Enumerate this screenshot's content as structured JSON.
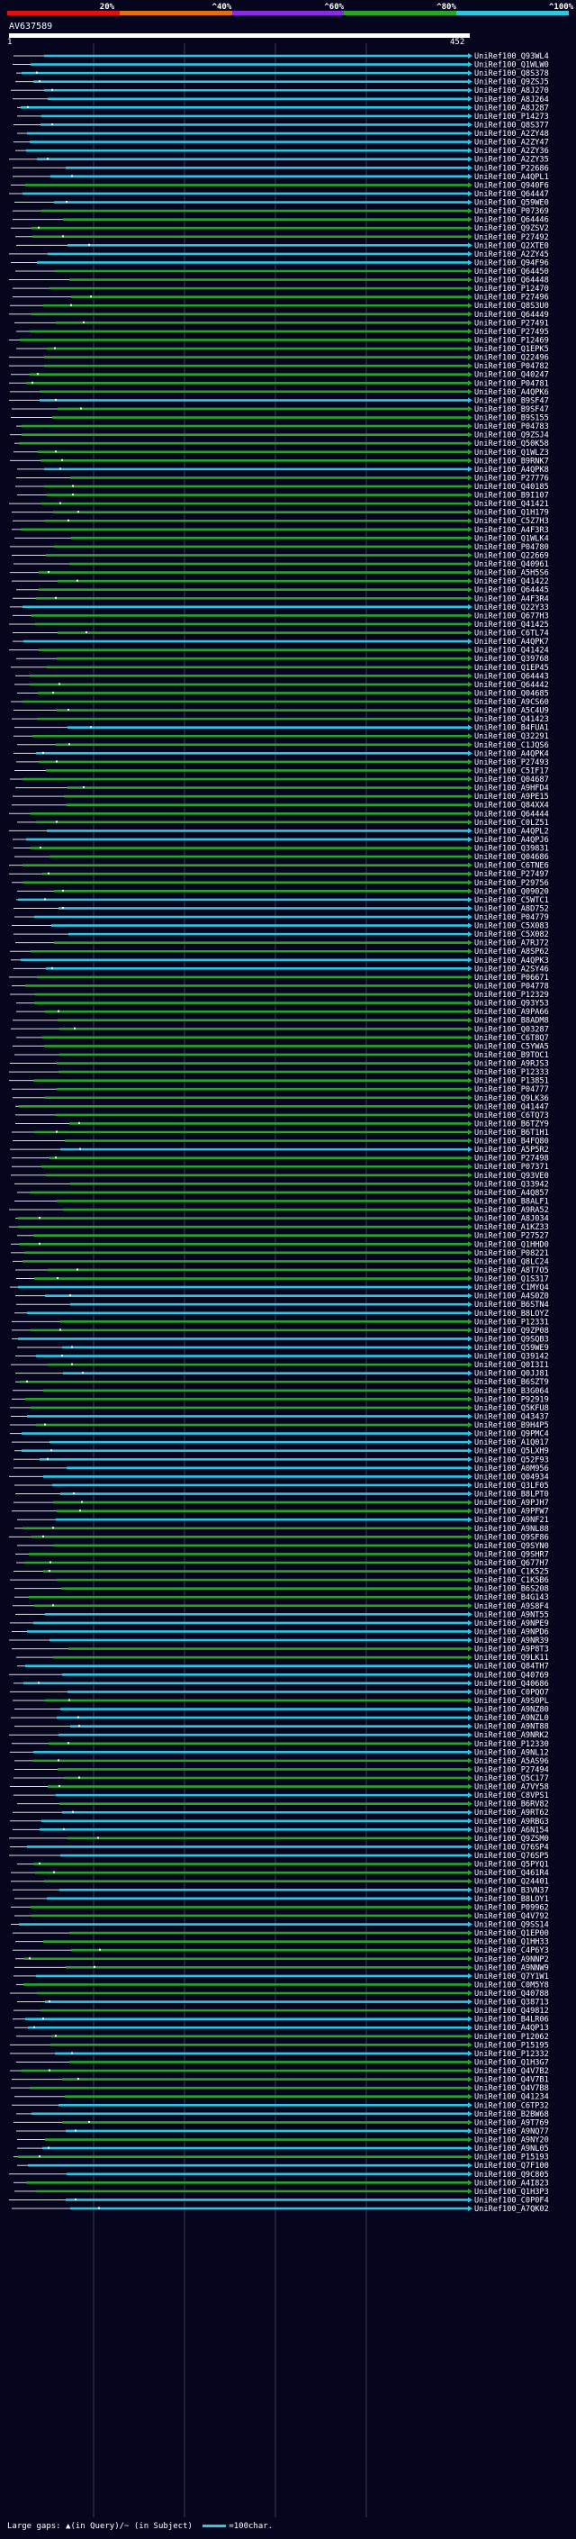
{
  "header": {
    "query_id": "AV637589",
    "range_start": "1",
    "range_end": "452"
  },
  "scale": [
    {
      "label": "20%",
      "color": "#e01010"
    },
    {
      "label": "^40%",
      "color": "#e07010"
    },
    {
      "label": "^60%",
      "color": "#8a2be2"
    },
    {
      "label": "^80%",
      "color": "#2aa52a"
    },
    {
      "label": "^100%",
      "color": "#2ec7e0"
    }
  ],
  "colors": {
    "cyan": "#2ec7e0",
    "green": "#2aa52a",
    "line": "#dcdcdc"
  },
  "hits": [
    {
      "id": "UniRef100_Q93WL4",
      "c": "cyan"
    },
    {
      "id": "UniRef100_Q1WLW0",
      "c": "cyan"
    },
    {
      "id": "UniRef100_Q8S378",
      "c": "cyan"
    },
    {
      "id": "UniRef100_Q9ZSJ5",
      "c": "cyan"
    },
    {
      "id": "UniRef100_A8J270",
      "c": "cyan"
    },
    {
      "id": "UniRef100_A8J264",
      "c": "cyan"
    },
    {
      "id": "UniRef100_A8J287",
      "c": "cyan"
    },
    {
      "id": "UniRef100_P14273",
      "c": "cyan"
    },
    {
      "id": "UniRef100_Q8S377",
      "c": "cyan"
    },
    {
      "id": "UniRef100_A2ZY48",
      "c": "cyan"
    },
    {
      "id": "UniRef100_A2ZY47",
      "c": "cyan"
    },
    {
      "id": "UniRef100_A2ZY36",
      "c": "cyan"
    },
    {
      "id": "UniRef100_A2ZY35",
      "c": "cyan"
    },
    {
      "id": "UniRef100_P22686",
      "c": "cyan"
    },
    {
      "id": "UniRef100_A4QPL1",
      "c": "cyan"
    },
    {
      "id": "UniRef100_Q940F6",
      "c": "green"
    },
    {
      "id": "UniRef100_Q64447",
      "c": "cyan"
    },
    {
      "id": "UniRef100_Q59WE0",
      "c": "cyan"
    },
    {
      "id": "UniRef100_P07369",
      "c": "green"
    },
    {
      "id": "UniRef100_Q64446",
      "c": "green"
    },
    {
      "id": "UniRef100_Q9ZSV2",
      "c": "green"
    },
    {
      "id": "UniRef100_P27492",
      "c": "green"
    },
    {
      "id": "UniRef100_Q2XTE0",
      "c": "cyan"
    },
    {
      "id": "UniRef100_A2ZY45",
      "c": "cyan"
    },
    {
      "id": "UniRef100_Q94F96",
      "c": "cyan"
    },
    {
      "id": "UniRef100_Q64450",
      "c": "green"
    },
    {
      "id": "UniRef100_Q64448",
      "c": "green"
    },
    {
      "id": "UniRef100_P12470",
      "c": "green"
    },
    {
      "id": "UniRef100_P27496",
      "c": "green"
    },
    {
      "id": "UniRef100_Q8S3U0",
      "c": "green"
    },
    {
      "id": "UniRef100_Q64449",
      "c": "green"
    },
    {
      "id": "UniRef100_P27491",
      "c": "green"
    },
    {
      "id": "UniRef100_P27495",
      "c": "green"
    },
    {
      "id": "UniRef100_P12469",
      "c": "green"
    },
    {
      "id": "UniRef100_Q1EPK5",
      "c": "green"
    },
    {
      "id": "UniRef100_Q22496",
      "c": "green"
    },
    {
      "id": "UniRef100_P04782",
      "c": "green"
    },
    {
      "id": "UniRef100_Q40247",
      "c": "green"
    },
    {
      "id": "UniRef100_P04781",
      "c": "green"
    },
    {
      "id": "UniRef100_A4QPK6",
      "c": "green"
    },
    {
      "id": "UniRef100_B9SF47",
      "c": "cyan"
    },
    {
      "id": "UniRef100_B9SF47",
      "c": "green"
    },
    {
      "id": "UniRef100_B9S155",
      "c": "green"
    },
    {
      "id": "UniRef100_P04783",
      "c": "green"
    },
    {
      "id": "UniRef100_Q9ZSJ4",
      "c": "green"
    },
    {
      "id": "UniRef100_Q50K58",
      "c": "green"
    },
    {
      "id": "UniRef100_Q1WLZ3",
      "c": "green"
    },
    {
      "id": "UniRef100_B9RNK7",
      "c": "green"
    },
    {
      "id": "UniRef100_A4QPK8",
      "c": "cyan"
    },
    {
      "id": "UniRef100_P27776",
      "c": "green"
    },
    {
      "id": "UniRef100_Q40185",
      "c": "green"
    },
    {
      "id": "UniRef100_B9I107",
      "c": "green"
    },
    {
      "id": "UniRef100_Q41421",
      "c": "green"
    },
    {
      "id": "UniRef100_Q1H179",
      "c": "green"
    },
    {
      "id": "UniRef100_C5Z7H3",
      "c": "green"
    },
    {
      "id": "UniRef100_A4F3R3",
      "c": "green"
    },
    {
      "id": "UniRef100_Q1WLK4",
      "c": "green"
    },
    {
      "id": "UniRef100_P04780",
      "c": "green"
    },
    {
      "id": "UniRef100_Q22669",
      "c": "green"
    },
    {
      "id": "UniRef100_Q40961",
      "c": "green"
    },
    {
      "id": "UniRef100_A5H5S6",
      "c": "green"
    },
    {
      "id": "UniRef100_Q41422",
      "c": "green"
    },
    {
      "id": "UniRef100_Q64445",
      "c": "green"
    },
    {
      "id": "UniRef100_A4F3R4",
      "c": "green"
    },
    {
      "id": "UniRef100_Q22Y33",
      "c": "cyan"
    },
    {
      "id": "UniRef100_Q677H3",
      "c": "green"
    },
    {
      "id": "UniRef100_Q41425",
      "c": "green"
    },
    {
      "id": "UniRef100_C6TL74",
      "c": "green"
    },
    {
      "id": "UniRef100_A4QPK7",
      "c": "cyan"
    },
    {
      "id": "UniRef100_Q41424",
      "c": "green"
    },
    {
      "id": "UniRef100_Q39768",
      "c": "green"
    },
    {
      "id": "UniRef100_Q1EP45",
      "c": "green"
    },
    {
      "id": "UniRef100_Q64443",
      "c": "green"
    },
    {
      "id": "UniRef100_Q64442",
      "c": "green"
    },
    {
      "id": "UniRef100_Q04685",
      "c": "green"
    },
    {
      "id": "UniRef100_A9CS60",
      "c": "green"
    },
    {
      "id": "UniRef100_A5C4U9",
      "c": "green"
    },
    {
      "id": "UniRef100_Q41423",
      "c": "green"
    },
    {
      "id": "UniRef100_B4FUA1",
      "c": "cyan"
    },
    {
      "id": "UniRef100_Q32291",
      "c": "green"
    },
    {
      "id": "UniRef100_C1JQS6",
      "c": "green"
    },
    {
      "id": "UniRef100_A4QPK4",
      "c": "cyan"
    },
    {
      "id": "UniRef100_P27493",
      "c": "green"
    },
    {
      "id": "UniRef100_C5IF17",
      "c": "green"
    },
    {
      "id": "UniRef100_Q04687",
      "c": "green"
    },
    {
      "id": "UniRef100_A9HFD4",
      "c": "green"
    },
    {
      "id": "UniRef100_A9PE15",
      "c": "green"
    },
    {
      "id": "UniRef100_Q84XX4",
      "c": "green"
    },
    {
      "id": "UniRef100_Q64444",
      "c": "green"
    },
    {
      "id": "UniRef100_C0LZ51",
      "c": "green"
    },
    {
      "id": "UniRef100_A4QPL2",
      "c": "cyan"
    },
    {
      "id": "UniRef100_A4QPJ6",
      "c": "cyan"
    },
    {
      "id": "UniRef100_Q39831",
      "c": "green"
    },
    {
      "id": "UniRef100_Q04686",
      "c": "green"
    },
    {
      "id": "UniRef100_C6TNE6",
      "c": "green"
    },
    {
      "id": "UniRef100_P27497",
      "c": "green"
    },
    {
      "id": "UniRef100_P29756",
      "c": "green"
    },
    {
      "id": "UniRef100_Q09020",
      "c": "green"
    },
    {
      "id": "UniRef100_C5WTC1",
      "c": "cyan"
    },
    {
      "id": "UniRef100_A8D752",
      "c": "cyan"
    },
    {
      "id": "UniRef100_P04779",
      "c": "cyan"
    },
    {
      "id": "UniRef100_C5X083",
      "c": "cyan"
    },
    {
      "id": "UniRef100_C5X082",
      "c": "cyan"
    },
    {
      "id": "UniRef100_A7RJ72",
      "c": "green"
    },
    {
      "id": "UniRef100_A8SP62",
      "c": "green"
    },
    {
      "id": "UniRef100_A4QPK3",
      "c": "cyan"
    },
    {
      "id": "UniRef100_A2SY46",
      "c": "cyan"
    },
    {
      "id": "UniRef100_P06671",
      "c": "green"
    },
    {
      "id": "UniRef100_P04778",
      "c": "green"
    },
    {
      "id": "UniRef100_P12329",
      "c": "green"
    },
    {
      "id": "UniRef100_Q93Y53",
      "c": "green"
    },
    {
      "id": "UniRef100_A9PA66",
      "c": "green"
    },
    {
      "id": "UniRef100_B8ADM8",
      "c": "green"
    },
    {
      "id": "UniRef100_Q03287",
      "c": "green"
    },
    {
      "id": "UniRef100_C6T8Q7",
      "c": "green"
    },
    {
      "id": "UniRef100_C5YWA5",
      "c": "green"
    },
    {
      "id": "UniRef100_B9TOC1",
      "c": "green"
    },
    {
      "id": "UniRef100_A9RJS3",
      "c": "green"
    },
    {
      "id": "UniRef100_P12333",
      "c": "green"
    },
    {
      "id": "UniRef100_P13851",
      "c": "green"
    },
    {
      "id": "UniRef100_P04777",
      "c": "green"
    },
    {
      "id": "UniRef100_Q9LK36",
      "c": "green"
    },
    {
      "id": "UniRef100_Q41447",
      "c": "green"
    },
    {
      "id": "UniRef100_C6TQ73",
      "c": "green"
    },
    {
      "id": "UniRef100_B6TZY9",
      "c": "green"
    },
    {
      "id": "UniRef100_B6T1H1",
      "c": "green"
    },
    {
      "id": "UniRef100_B4FQ80",
      "c": "green"
    },
    {
      "id": "UniRef100_A5P5R2",
      "c": "cyan"
    },
    {
      "id": "UniRef100_P27498",
      "c": "green"
    },
    {
      "id": "UniRef100_P07371",
      "c": "green"
    },
    {
      "id": "UniRef100_Q93VE0",
      "c": "green"
    },
    {
      "id": "UniRef100_Q33942",
      "c": "green"
    },
    {
      "id": "UniRef100_A4Q857",
      "c": "green"
    },
    {
      "id": "UniRef100_B8ALF1",
      "c": "green"
    },
    {
      "id": "UniRef100_A9RA52",
      "c": "green"
    },
    {
      "id": "UniRef100_A8J034",
      "c": "green"
    },
    {
      "id": "UniRef100_A1KZ33",
      "c": "green"
    },
    {
      "id": "UniRef100_P27527",
      "c": "green"
    },
    {
      "id": "UniRef100_Q1HHD0",
      "c": "green"
    },
    {
      "id": "UniRef100_P08221",
      "c": "green"
    },
    {
      "id": "UniRef100_Q8LC24",
      "c": "green"
    },
    {
      "id": "UniRef100_A8T7O5",
      "c": "green"
    },
    {
      "id": "UniRef100_Q1S317",
      "c": "green"
    },
    {
      "id": "UniRef100_C1MYQ4",
      "c": "cyan"
    },
    {
      "id": "UniRef100_A4S0Z0",
      "c": "cyan"
    },
    {
      "id": "UniRef100_B6STN4",
      "c": "cyan"
    },
    {
      "id": "UniRef100_B8LOYZ",
      "c": "cyan"
    },
    {
      "id": "UniRef100_P12331",
      "c": "green"
    },
    {
      "id": "UniRef100_Q9ZP08",
      "c": "green"
    },
    {
      "id": "UniRef100_Q9SQB3",
      "c": "cyan"
    },
    {
      "id": "UniRef100_Q59WE9",
      "c": "cyan"
    },
    {
      "id": "UniRef100_Q39142",
      "c": "cyan"
    },
    {
      "id": "UniRef100_Q0I3I1",
      "c": "green"
    },
    {
      "id": "UniRef100_Q0JJ81",
      "c": "cyan"
    },
    {
      "id": "UniRef100_B6SZT9",
      "c": "green"
    },
    {
      "id": "UniRef100_B3G064",
      "c": "green"
    },
    {
      "id": "UniRef100_P92919",
      "c": "green"
    },
    {
      "id": "UniRef100_Q5KFU8",
      "c": "green"
    },
    {
      "id": "UniRef100_Q43437",
      "c": "cyan"
    },
    {
      "id": "UniRef100_B9H4P5",
      "c": "green"
    },
    {
      "id": "UniRef100_Q9PMC4",
      "c": "cyan"
    },
    {
      "id": "UniRef100_A1Q017",
      "c": "cyan"
    },
    {
      "id": "UniRef100_Q5LXH9",
      "c": "cyan"
    },
    {
      "id": "UniRef100_Q52F93",
      "c": "cyan"
    },
    {
      "id": "UniRef100_A0M956",
      "c": "cyan"
    },
    {
      "id": "UniRef100_Q04934",
      "c": "cyan"
    },
    {
      "id": "UniRef100_Q3LF05",
      "c": "cyan"
    },
    {
      "id": "UniRef100_B8LPT0",
      "c": "cyan"
    },
    {
      "id": "UniRef100_A9PJH7",
      "c": "green"
    },
    {
      "id": "UniRef100_A9PFW7",
      "c": "green"
    },
    {
      "id": "UniRef100_A9NF21",
      "c": "cyan"
    },
    {
      "id": "UniRef100_A9NL88",
      "c": "green"
    },
    {
      "id": "UniRef100_Q9SF86",
      "c": "green"
    },
    {
      "id": "UniRef100_Q9SYN0",
      "c": "green"
    },
    {
      "id": "UniRef100_Q9SHR7",
      "c": "green"
    },
    {
      "id": "UniRef100_Q677H7",
      "c": "green"
    },
    {
      "id": "UniRef100_C1K525",
      "c": "green"
    },
    {
      "id": "UniRef100_C1K5B6",
      "c": "green"
    },
    {
      "id": "UniRef100_B6S208",
      "c": "green"
    },
    {
      "id": "UniRef100_B4G143",
      "c": "green"
    },
    {
      "id": "UniRef100_A9S8F4",
      "c": "green"
    },
    {
      "id": "UniRef100_A9NT55",
      "c": "cyan"
    },
    {
      "id": "UniRef100_A9NPE9",
      "c": "cyan"
    },
    {
      "id": "UniRef100_A9NPD6",
      "c": "cyan"
    },
    {
      "id": "UniRef100_A9NR39",
      "c": "cyan"
    },
    {
      "id": "UniRef100_A9P8T3",
      "c": "green"
    },
    {
      "id": "UniRef100_Q9LK11",
      "c": "green"
    },
    {
      "id": "UniRef100_Q84TH7",
      "c": "cyan"
    },
    {
      "id": "UniRef100_Q40769",
      "c": "cyan"
    },
    {
      "id": "UniRef100_Q40686",
      "c": "cyan"
    },
    {
      "id": "UniRef100_C0PQO7",
      "c": "cyan"
    },
    {
      "id": "UniRef100_A9S0PL",
      "c": "green"
    },
    {
      "id": "UniRef100_A9NZ80",
      "c": "cyan"
    },
    {
      "id": "UniRef100_A9NZL0",
      "c": "cyan"
    },
    {
      "id": "UniRef100_A9NT88",
      "c": "cyan"
    },
    {
      "id": "UniRef100_A9NRK2",
      "c": "cyan"
    },
    {
      "id": "UniRef100_P12330",
      "c": "green"
    },
    {
      "id": "UniRef100_A9NL12",
      "c": "cyan"
    },
    {
      "id": "UniRef100_A5AS96",
      "c": "green"
    },
    {
      "id": "UniRef100_P27494",
      "c": "green"
    },
    {
      "id": "UniRef100_Q5C177",
      "c": "green"
    },
    {
      "id": "UniRef100_A7VY58",
      "c": "green"
    },
    {
      "id": "UniRef100_C8VPS1",
      "c": "cyan"
    },
    {
      "id": "UniRef100_B6RV82",
      "c": "green"
    },
    {
      "id": "UniRef100_A9RT62",
      "c": "cyan"
    },
    {
      "id": "UniRef100_A9RBG3",
      "c": "cyan"
    },
    {
      "id": "UniRef100_A6N154",
      "c": "cyan"
    },
    {
      "id": "UniRef100_Q9ZSM0",
      "c": "green"
    },
    {
      "id": "UniRef100_Q76SP4",
      "c": "cyan"
    },
    {
      "id": "UniRef100_Q76SP5",
      "c": "cyan"
    },
    {
      "id": "UniRef100_Q5PYQ1",
      "c": "green"
    },
    {
      "id": "UniRef100_Q461R4",
      "c": "green"
    },
    {
      "id": "UniRef100_Q24401",
      "c": "green"
    },
    {
      "id": "UniRef100_B3VN37",
      "c": "cyan"
    },
    {
      "id": "UniRef100_B8LOY1",
      "c": "cyan"
    },
    {
      "id": "UniRef100_P09962",
      "c": "green"
    },
    {
      "id": "UniRef100_Q4V792",
      "c": "green"
    },
    {
      "id": "UniRef100_Q9SS14",
      "c": "cyan"
    },
    {
      "id": "UniRef100_Q1EP00",
      "c": "green"
    },
    {
      "id": "UniRef100_Q1HH33",
      "c": "green"
    },
    {
      "id": "UniRef100_C4P6Y3",
      "c": "green"
    },
    {
      "id": "UniRef100_A9NNP2",
      "c": "green"
    },
    {
      "id": "UniRef100_A9NNW9",
      "c": "green"
    },
    {
      "id": "UniRef100_Q7Y1W1",
      "c": "cyan"
    },
    {
      "id": "UniRef100_C0M5Y8",
      "c": "green"
    },
    {
      "id": "UniRef100_Q40788",
      "c": "green"
    },
    {
      "id": "UniRef100_Q38713",
      "c": "cyan"
    },
    {
      "id": "UniRef100_Q49812",
      "c": "green"
    },
    {
      "id": "UniRef100_B4LR06",
      "c": "cyan"
    },
    {
      "id": "UniRef100_A4QP13",
      "c": "cyan"
    },
    {
      "id": "UniRef100_P12062",
      "c": "green"
    },
    {
      "id": "UniRef100_P15195",
      "c": "green"
    },
    {
      "id": "UniRef100_P12332",
      "c": "cyan"
    },
    {
      "id": "UniRef100_Q1H3G7",
      "c": "green"
    },
    {
      "id": "UniRef100_Q4V7B2",
      "c": "green"
    },
    {
      "id": "UniRef100_Q4V7B1",
      "c": "green"
    },
    {
      "id": "UniRef100_Q4V7B8",
      "c": "green"
    },
    {
      "id": "UniRef100_Q41234",
      "c": "green"
    },
    {
      "id": "UniRef100_C6TP32",
      "c": "cyan"
    },
    {
      "id": "UniRef100_B2BW68",
      "c": "cyan"
    },
    {
      "id": "UniRef100_A9T769",
      "c": "green"
    },
    {
      "id": "UniRef100_A9NQ77",
      "c": "cyan"
    },
    {
      "id": "UniRef100_A9NY20",
      "c": "green"
    },
    {
      "id": "UniRef100_A9NL05",
      "c": "cyan"
    },
    {
      "id": "UniRef100_P15193",
      "c": "green"
    },
    {
      "id": "UniRef100_Q7F100",
      "c": "cyan"
    },
    {
      "id": "UniRef100_Q9C805",
      "c": "cyan"
    },
    {
      "id": "UniRef100_A4I823",
      "c": "green"
    },
    {
      "id": "UniRef100_Q1H3P3",
      "c": "green"
    },
    {
      "id": "UniRef100_C0P0F4",
      "c": "cyan"
    },
    {
      "id": "UniRef100_A7QK02",
      "c": "cyan"
    }
  ],
  "footer": {
    "text": "Large gaps: ▲(in Query)/~ (in Subject)",
    "legend_label": "=100char."
  }
}
